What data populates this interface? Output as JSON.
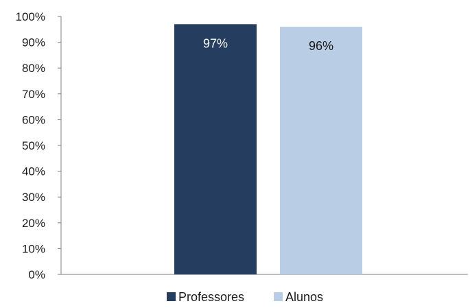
{
  "chart_data": {
    "type": "bar",
    "categories": [
      "Professores",
      "Alunos"
    ],
    "values": [
      97,
      96
    ],
    "value_labels": [
      "97%",
      "96%"
    ],
    "colors": [
      "#253D5E",
      "#B9CDE5"
    ],
    "label_colors": [
      "#ffffff",
      "#1a1a1a"
    ],
    "ylim": [
      0,
      100
    ],
    "yticks": [
      0,
      10,
      20,
      30,
      40,
      50,
      60,
      70,
      80,
      90,
      100
    ],
    "ytick_labels": [
      "0%",
      "10%",
      "20%",
      "30%",
      "40%",
      "50%",
      "60%",
      "70%",
      "80%",
      "90%",
      "100%"
    ],
    "grid": false,
    "legend": {
      "placement": "bottom-center",
      "entries": [
        "Professores",
        "Alunos"
      ]
    }
  }
}
